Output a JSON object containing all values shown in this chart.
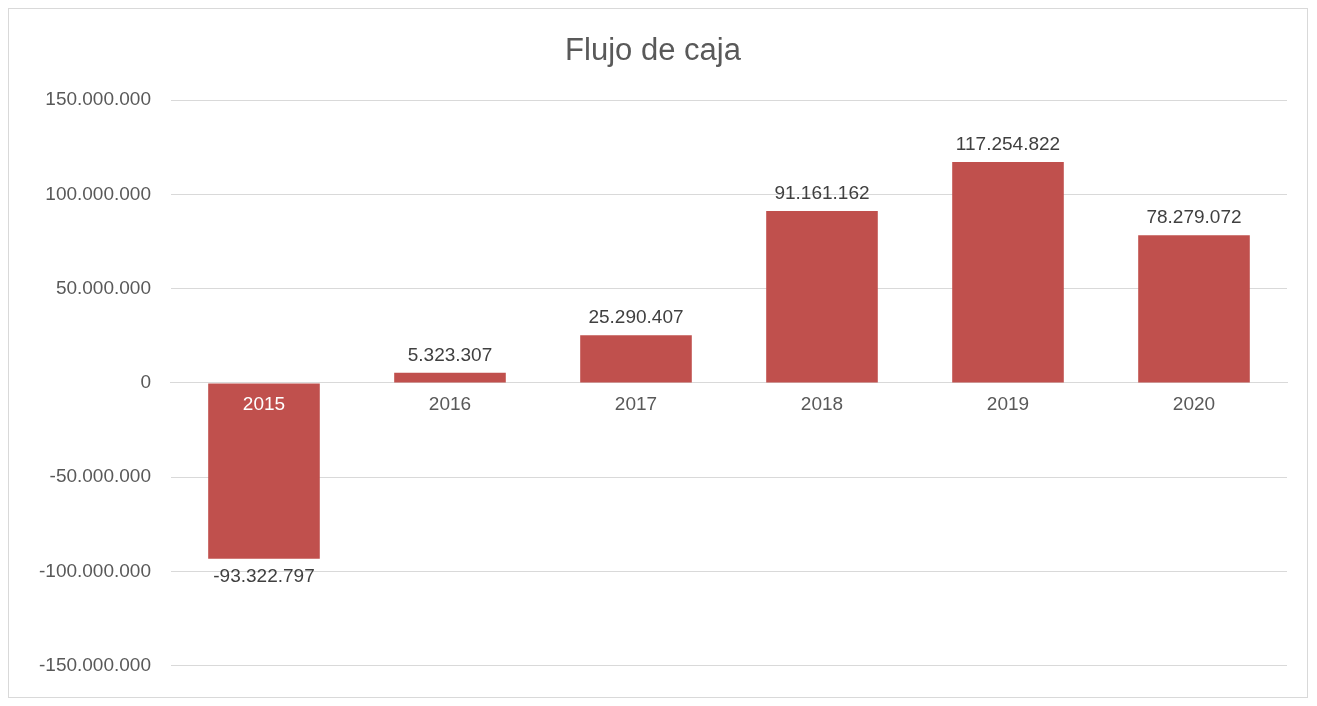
{
  "chart_data": {
    "type": "bar",
    "title": "Flujo de caja",
    "categories": [
      "2015",
      "2016",
      "2017",
      "2018",
      "2019",
      "2020"
    ],
    "values": [
      -93322797,
      5323307,
      25290407,
      91161162,
      117254822,
      78279072
    ],
    "value_labels": [
      "-93.322.797",
      "5.323.307",
      "25.290.407",
      "91.161.162",
      "117.254.822",
      "78.279.072"
    ],
    "color": "#c0504d",
    "ylim": [
      -150000000,
      150000000
    ],
    "yticks": [
      {
        "value": -150000000,
        "label": "-150.000.000"
      },
      {
        "value": -100000000,
        "label": "-100.000.000"
      },
      {
        "value": -50000000,
        "label": "-50.000.000"
      },
      0,
      {
        "value": 50000000,
        "label": "50.000.000"
      },
      {
        "value": 100000000,
        "label": "100.000.000"
      },
      {
        "value": 150000000,
        "label": "150.000.000"
      }
    ],
    "grid": "y",
    "legend": false
  }
}
